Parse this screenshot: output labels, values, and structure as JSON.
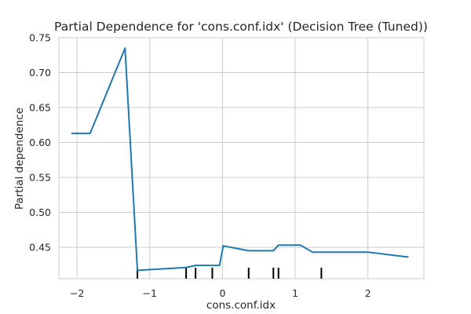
{
  "chart_data": {
    "type": "line",
    "title": "Partial Dependence for 'cons.conf.idx' (Decision Tree (Tuned))",
    "xlabel": "cons.conf.idx",
    "ylabel": "Partial dependence",
    "xlim": [
      -2.25,
      2.77
    ],
    "ylim": [
      0.405,
      0.75
    ],
    "grid": true,
    "x_ticks": [
      -2,
      -1,
      0,
      1,
      2
    ],
    "x_tick_labels": [
      "−2",
      "−1",
      "0",
      "1",
      "2"
    ],
    "y_ticks": [
      0.45,
      0.5,
      0.55,
      0.6,
      0.65,
      0.7,
      0.75
    ],
    "y_tick_labels": [
      "0.45",
      "0.50",
      "0.55",
      "0.60",
      "0.65",
      "0.70",
      "0.75"
    ],
    "series": [
      {
        "color": "#1f77b4",
        "x": [
          -2.07,
          -1.82,
          -1.34,
          -1.17,
          -0.5,
          -0.37,
          -0.04,
          0.01,
          0.36,
          0.7,
          0.77,
          1.07,
          1.24,
          2.0,
          2.55
        ],
        "y": [
          0.613,
          0.613,
          0.735,
          0.417,
          0.421,
          0.424,
          0.424,
          0.452,
          0.445,
          0.445,
          0.453,
          0.453,
          0.443,
          0.443,
          0.436
        ]
      }
    ],
    "deciles": [
      -1.17,
      -0.5,
      -0.37,
      -0.14,
      0.36,
      0.7,
      0.77,
      1.36
    ],
    "decile_color": "#000000"
  }
}
